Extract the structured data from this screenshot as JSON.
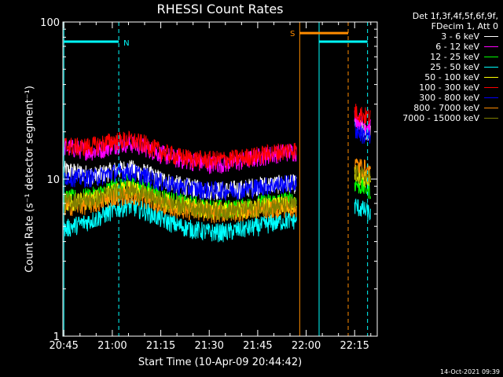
{
  "chart_data": {
    "type": "line",
    "title": "RHESSI Count Rates",
    "xlabel": "Start Time (10-Apr-09 20:44:42)",
    "ylabel": "Count Rate (s⁻¹ detector segment⁻¹)",
    "y_scale": "log",
    "ylim": [
      1,
      100
    ],
    "y_ticks": [
      "1",
      "10",
      "100"
    ],
    "xlim": [
      "20:45",
      "22:22"
    ],
    "x_ticks": [
      "20:45",
      "21:00",
      "21:15",
      "21:30",
      "21:45",
      "22:00",
      "22:15"
    ],
    "legend_header": [
      "Det 1f,3f,4f,5f,6f,9f,",
      "FDecim 1, Att 0"
    ],
    "legend_position": "right",
    "series": [
      {
        "name": "3 - 6 keV",
        "color": "#ffffff",
        "segments": [
          {
            "x": [
              "20:45",
              "20:50",
              "20:55",
              "21:00",
              "21:05",
              "21:10",
              "21:15",
              "21:20",
              "21:25",
              "21:30",
              "21:35",
              "21:40",
              "21:45",
              "21:50",
              "21:55",
              "21:57"
            ],
            "y": [
              11.5,
              11,
              10.6,
              11.3,
              11.8,
              11,
              10,
              9.3,
              8.8,
              8.5,
              8.5,
              8.7,
              9.1,
              9.3,
              9.4,
              9.3
            ]
          },
          {
            "x": [
              "22:15",
              "22:17",
              "22:19",
              "22:20"
            ],
            "y": [
              23,
              21,
              20,
              19.5
            ]
          }
        ]
      },
      {
        "name": "6 - 12 keV",
        "color": "#ff00ff",
        "segments": [
          {
            "x": [
              "20:45",
              "20:50",
              "20:55",
              "21:00",
              "21:05",
              "21:10",
              "21:15",
              "21:20",
              "21:25",
              "21:30",
              "21:35",
              "21:40",
              "21:45",
              "21:50",
              "21:55",
              "21:57"
            ],
            "y": [
              16,
              15.5,
              15,
              16.5,
              17,
              16,
              14.5,
              13.5,
              13,
              12.5,
              12.6,
              13,
              13.8,
              14.5,
              15,
              15
            ]
          },
          {
            "x": [
              "22:15",
              "22:17",
              "22:19",
              "22:20"
            ],
            "y": [
              25,
              23,
              22,
              21
            ]
          }
        ]
      },
      {
        "name": "12 - 25 keV",
        "color": "#00ff00",
        "segments": [
          {
            "x": [
              "20:45",
              "20:50",
              "20:55",
              "21:00",
              "21:05",
              "21:10",
              "21:15",
              "21:20",
              "21:25",
              "21:30",
              "21:35",
              "21:40",
              "21:45",
              "21:50",
              "21:55",
              "21:57"
            ],
            "y": [
              7.5,
              7.6,
              7.9,
              8.8,
              9.5,
              8.7,
              7.8,
              7.2,
              6.9,
              6.6,
              6.5,
              6.6,
              7,
              7.2,
              7.3,
              7.2
            ]
          },
          {
            "x": [
              "22:15",
              "22:17",
              "22:19",
              "22:20"
            ],
            "y": [
              9.5,
              9,
              8.7,
              8.5
            ]
          }
        ]
      },
      {
        "name": "25 - 50 keV",
        "color": "#00ffff",
        "segments": [
          {
            "x": [
              "20:45",
              "20:50",
              "20:55",
              "21:00",
              "21:05",
              "21:10",
              "21:15",
              "21:20",
              "21:25",
              "21:30",
              "21:35",
              "21:40",
              "21:45",
              "21:50",
              "21:55",
              "21:57"
            ],
            "y": [
              4.8,
              5.2,
              5.6,
              6.3,
              6.8,
              6.3,
              5.6,
              5.1,
              4.8,
              4.6,
              4.6,
              4.8,
              5,
              5.3,
              5.5,
              5.5
            ]
          },
          {
            "x": [
              "22:15",
              "22:17",
              "22:19",
              "22:20"
            ],
            "y": [
              6.8,
              6.5,
              6.2,
              6
            ]
          }
        ]
      },
      {
        "name": "50 - 100 keV",
        "color": "#ffff00",
        "segments": [
          {
            "x": [
              "20:45",
              "20:50",
              "20:55",
              "21:00",
              "21:05",
              "21:10",
              "21:15",
              "21:20",
              "21:25",
              "21:30",
              "21:35",
              "21:40",
              "21:45",
              "21:50",
              "21:55",
              "21:57"
            ],
            "y": [
              7,
              7.2,
              7.5,
              8.2,
              8.6,
              8,
              7.3,
              6.9,
              6.6,
              6.4,
              6.3,
              6.4,
              6.6,
              6.8,
              6.9,
              6.8
            ]
          },
          {
            "x": [
              "22:15",
              "22:17",
              "22:19",
              "22:20"
            ],
            "y": [
              11,
              10.5,
              10,
              9.8
            ]
          }
        ]
      },
      {
        "name": "100 - 300 keV",
        "color": "#ff0000",
        "segments": [
          {
            "x": [
              "20:45",
              "20:50",
              "20:55",
              "21:00",
              "21:05",
              "21:10",
              "21:15",
              "21:20",
              "21:25",
              "21:30",
              "21:35",
              "21:40",
              "21:45",
              "21:50",
              "21:55",
              "21:57"
            ],
            "y": [
              16.5,
              16,
              16.5,
              17.5,
              17.8,
              16.8,
              15,
              14,
              13.5,
              13.3,
              13.4,
              13.7,
              14.2,
              14.8,
              15.4,
              15.4
            ]
          },
          {
            "x": [
              "22:15",
              "22:17",
              "22:19",
              "22:20"
            ],
            "y": [
              27,
              26,
              25,
              24.5
            ]
          }
        ]
      },
      {
        "name": "300 - 800 keV",
        "color": "#0000ff",
        "segments": [
          {
            "x": [
              "20:45",
              "20:50",
              "20:55",
              "21:00",
              "21:05",
              "21:10",
              "21:15",
              "21:20",
              "21:25",
              "21:30",
              "21:35",
              "21:40",
              "21:45",
              "21:50",
              "21:55",
              "21:57"
            ],
            "y": [
              10.5,
              10.2,
              10.3,
              11,
              11.2,
              10.5,
              9.6,
              9,
              8.7,
              8.5,
              8.5,
              8.6,
              8.9,
              9.2,
              9.4,
              9.4
            ]
          },
          {
            "x": [
              "22:15",
              "22:17",
              "22:19",
              "22:20"
            ],
            "y": [
              21,
              19.5,
              18.5,
              18
            ]
          }
        ]
      },
      {
        "name": "800 - 7000 keV",
        "color": "#ff8c00",
        "segments": [
          {
            "x": [
              "20:45",
              "20:50",
              "20:55",
              "21:00",
              "21:05",
              "21:10",
              "21:15",
              "21:20",
              "21:25",
              "21:30",
              "21:35",
              "21:40",
              "21:45",
              "21:50",
              "21:55",
              "21:57"
            ],
            "y": [
              6.7,
              6.8,
              7,
              7.7,
              8,
              7.5,
              6.9,
              6.5,
              6.3,
              6.1,
              6.1,
              6.2,
              6.4,
              6.5,
              6.6,
              6.6
            ]
          },
          {
            "x": [
              "22:15",
              "22:17",
              "22:19",
              "22:20"
            ],
            "y": [
              12.5,
              12,
              11.5,
              11
            ]
          }
        ]
      },
      {
        "name": "7000 - 15000 keV",
        "color": "#808000",
        "segments": [
          {
            "x": [
              "20:45",
              "20:50",
              "20:55",
              "21:00",
              "21:05",
              "21:10",
              "21:15",
              "21:20",
              "21:25",
              "21:30",
              "21:35",
              "21:40",
              "21:45",
              "21:50",
              "21:55",
              "21:57"
            ],
            "y": [
              7.2,
              7.3,
              7.5,
              8.2,
              8.6,
              8,
              7.3,
              6.9,
              6.6,
              6.4,
              6.3,
              6.4,
              6.6,
              6.8,
              6.9,
              6.8
            ]
          },
          {
            "x": [
              "22:15",
              "22:17",
              "22:19",
              "22:20"
            ],
            "y": [
              11,
              10.5,
              10.2,
              10
            ]
          }
        ]
      }
    ],
    "annotations": [
      {
        "label": "N",
        "color": "#00ffff",
        "x_start": "20:45",
        "x_end": "21:02",
        "y": 75
      },
      {
        "label": "S",
        "color": "#ff8c00",
        "x_start": "21:58",
        "x_end": "22:13",
        "y": 85
      },
      {
        "label": "",
        "color": "#00ffff",
        "x_start": "22:04",
        "x_end": "22:19",
        "y": 75
      }
    ],
    "vlines": [
      {
        "x": "20:45",
        "color": "#00ffff",
        "style": "solid"
      },
      {
        "x": "21:02",
        "color": "#00ffff",
        "style": "dashed"
      },
      {
        "x": "21:58",
        "color": "#ff8c00",
        "style": "solid"
      },
      {
        "x": "22:04",
        "color": "#00ffff",
        "style": "solid"
      },
      {
        "x": "22:13",
        "color": "#ff8c00",
        "style": "dashed"
      },
      {
        "x": "22:19",
        "color": "#00ffff",
        "style": "dashed"
      }
    ]
  },
  "footer": "14-Oct-2021 09:39"
}
